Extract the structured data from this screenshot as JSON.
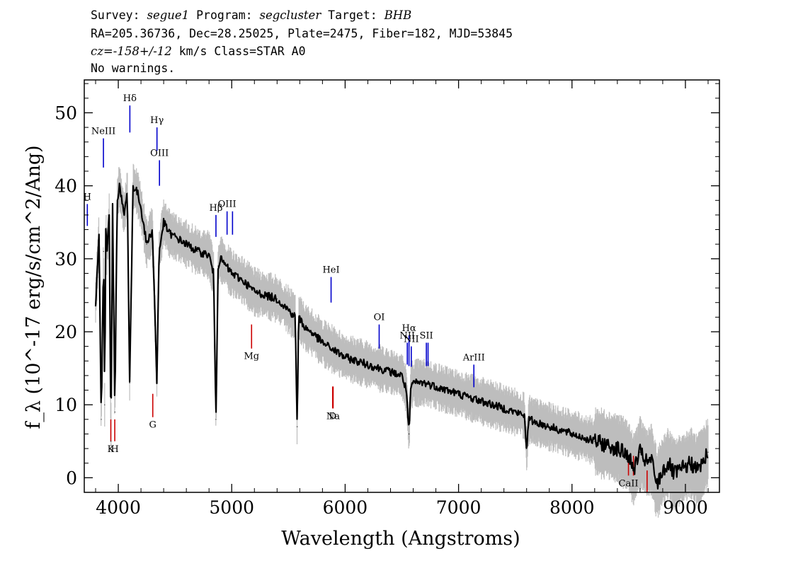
{
  "header": {
    "line1": {
      "survey_label": "Survey: ",
      "survey": "segue1",
      "program_label": " Program: ",
      "program": "segcluster",
      "target_label": " Target: ",
      "target": "BHB"
    },
    "line2": "RA=205.36736, Dec=28.25025, Plate=2475, Fiber=182, MJD=53845",
    "line3": {
      "cz_label": "cz=",
      "cz_value": "-158+/-12",
      "rest": " km/s Class=STAR A0"
    },
    "line4": "No warnings."
  },
  "chart_data": {
    "type": "line",
    "xlabel": "Wavelength (Angstroms)",
    "ylabel": "f_λ (10^-17 erg/s/cm^2/Ang)",
    "xlim": [
      3700,
      9300
    ],
    "ylim": [
      -2,
      54.5
    ],
    "xticks": [
      4000,
      5000,
      6000,
      7000,
      8000,
      9000
    ],
    "yticks": [
      0,
      10,
      20,
      30,
      40,
      50
    ],
    "colors": {
      "flux": "#000000",
      "noise_band": "#bdbdbd",
      "emission": "#0000cc",
      "absorption": "#cc0000"
    },
    "series": [
      {
        "name": "flux",
        "x": [
          3800,
          3830,
          3850,
          3870,
          3880,
          3890,
          3900,
          3920,
          3935,
          3950,
          3970,
          3990,
          4010,
          4050,
          4080,
          4100,
          4130,
          4170,
          4200,
          4250,
          4300,
          4320,
          4340,
          4360,
          4400,
          4450,
          4500,
          4600,
          4700,
          4800,
          4840,
          4861,
          4880,
          4900,
          5000,
          5100,
          5200,
          5300,
          5400,
          5500,
          5560,
          5577,
          5590,
          5650,
          5700,
          5800,
          5900,
          6000,
          6100,
          6200,
          6300,
          6400,
          6500,
          6540,
          6563,
          6580,
          6600,
          6700,
          6800,
          6900,
          7000,
          7100,
          7200,
          7300,
          7400,
          7500,
          7580,
          7600,
          7620,
          7700,
          7800,
          7900,
          8000,
          8100,
          8200,
          8300,
          8400,
          8500,
          8540,
          8600,
          8662,
          8700,
          8750,
          8800,
          8850,
          8900,
          8950,
          9000,
          9050,
          9100,
          9150,
          9200
        ],
        "y": [
          24,
          33,
          8,
          31,
          10,
          34,
          31,
          36,
          5,
          37,
          9,
          38,
          40,
          36,
          39,
          13,
          40,
          39,
          37,
          32,
          34,
          24,
          13,
          31,
          35,
          33.5,
          33,
          32,
          31,
          30.5,
          28,
          8,
          29,
          30,
          28,
          27,
          25.5,
          25,
          24.5,
          23,
          22,
          7,
          22,
          20.5,
          20,
          18.5,
          17.5,
          16.5,
          16,
          15.5,
          15,
          14.5,
          14,
          12,
          6,
          12.5,
          13,
          13,
          12.5,
          12,
          11.5,
          11,
          10.5,
          10,
          9.5,
          9,
          8.5,
          4,
          8,
          7.5,
          7,
          6.5,
          6,
          5.5,
          5,
          4.5,
          4,
          3,
          1,
          3.5,
          2,
          2.5,
          -1,
          1,
          2,
          0.5,
          1,
          1.5,
          2,
          1,
          2,
          3.5
        ]
      }
    ],
    "emission_lines": [
      {
        "label": "H",
        "wl": 3727,
        "y_top": 37.5,
        "y_bot": 34.5
      },
      {
        "label": "NeIII",
        "wl": 3869,
        "y_top": 46.5,
        "y_bot": 42.5
      },
      {
        "label": "Hδ",
        "wl": 4102,
        "y_top": 51,
        "y_bot": 47.3
      },
      {
        "label": "Hγ",
        "wl": 4341,
        "y_top": 48,
        "y_bot": 44.8
      },
      {
        "label": "OIII",
        "wl": 4363,
        "y_top": 43.5,
        "y_bot": 40
      },
      {
        "label": "Hβ",
        "wl": 4861,
        "y_top": 36,
        "y_bot": 33
      },
      {
        "label": "OIII",
        "wl": 4959,
        "y_top": 36.5,
        "y_bot": 33.3
      },
      {
        "label": "",
        "wl": 5007,
        "y_top": 36.5,
        "y_bot": 33.3
      },
      {
        "label": "HeI",
        "wl": 5876,
        "y_top": 27.5,
        "y_bot": 24
      },
      {
        "label": "OI",
        "wl": 6300,
        "y_top": 21,
        "y_bot": 17.7
      },
      {
        "label": "NII",
        "wl": 6548,
        "y_top": 18.5,
        "y_bot": 15.5
      },
      {
        "label": "Hα",
        "wl": 6563,
        "y_top": 19.5,
        "y_bot": 15.3
      },
      {
        "label": "NII",
        "wl": 6583,
        "y_top": 18,
        "y_bot": 15.2
      },
      {
        "label": "SII",
        "wl": 6716,
        "y_top": 18.5,
        "y_bot": 15.3
      },
      {
        "label": "",
        "wl": 6731,
        "y_top": 18.5,
        "y_bot": 15.3
      },
      {
        "label": "ArIII",
        "wl": 7135,
        "y_top": 15.5,
        "y_bot": 12.4
      }
    ],
    "absorption_lines": [
      {
        "label": "K",
        "wl": 3934,
        "y_top": 8,
        "y_bot": 5
      },
      {
        "label": "H",
        "wl": 3969,
        "y_top": 8,
        "y_bot": 5
      },
      {
        "label": "G",
        "wl": 4304,
        "y_top": 11.5,
        "y_bot": 8.3
      },
      {
        "label": "Mg",
        "wl": 5175,
        "y_top": 21,
        "y_bot": 17.7
      },
      {
        "label": "Na",
        "wl": 5894,
        "y_top": 12.5,
        "y_bot": 9.5
      },
      {
        "label": "D",
        "wl": 5890,
        "y_top": 12.5,
        "y_bot": 9.5
      },
      {
        "label": "CaII",
        "wl": 8498,
        "y_top": 3,
        "y_bot": 0.3
      },
      {
        "label": "",
        "wl": 8542,
        "y_top": 3,
        "y_bot": 0.3
      },
      {
        "label": "",
        "wl": 8662,
        "y_top": 1,
        "y_bot": -2
      }
    ]
  }
}
